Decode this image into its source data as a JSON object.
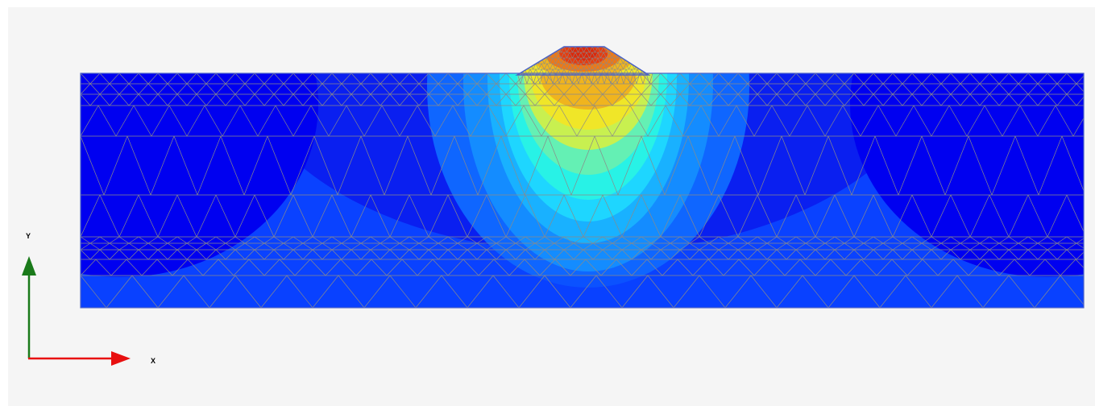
{
  "view": {
    "axes": {
      "x_label": "X",
      "y_label": "Y"
    },
    "colors": {
      "background": "#f5f5f5",
      "mesh_line": "#8a8a8a",
      "boundary": "#4a62c8",
      "axis_x": "#e81010",
      "axis_y": "#1a7a1a",
      "contour_scale": [
        "#0000f0",
        "#0a1ff0",
        "#0a42ff",
        "#0f66ff",
        "#148cff",
        "#19b1ff",
        "#1ed6ff",
        "#28f2e6",
        "#64f0b4",
        "#c8f050",
        "#f0e628",
        "#f0b41e",
        "#f07814",
        "#e63c0f",
        "#dc280a"
      ]
    },
    "icons": [
      "axis-arrow-x-icon",
      "axis-arrow-y-icon"
    ]
  }
}
